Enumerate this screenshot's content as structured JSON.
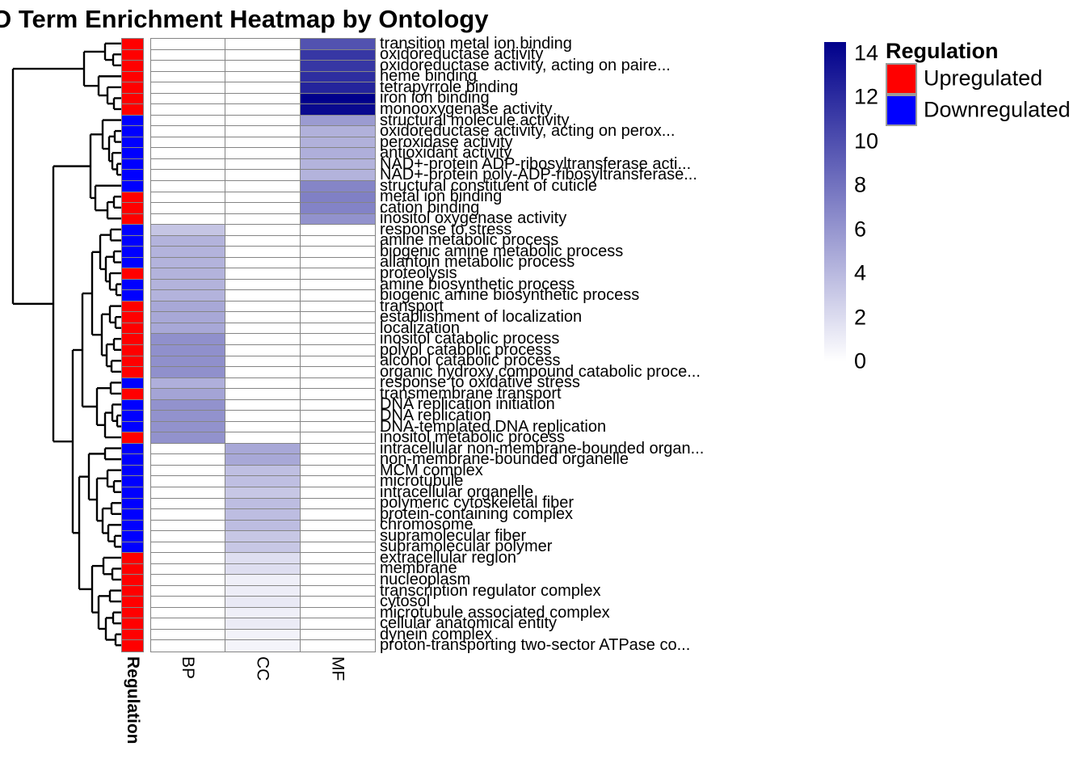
{
  "title": "GO Term Enrichment Heatmap by Ontology",
  "chart_data": {
    "type": "heatmap",
    "columns": [
      "BP",
      "CC",
      "MF"
    ],
    "annotation": {
      "name": "Regulation",
      "colors": {
        "Upregulated": "#FF0000",
        "Downregulated": "#0000FF"
      }
    },
    "value_scale": {
      "min": 0,
      "max": 14,
      "ticks": [
        14,
        12,
        10,
        8,
        6,
        4,
        2,
        0
      ],
      "low_color": "#FFFFFF",
      "high_color": "#00008B"
    },
    "legend": {
      "title": "Regulation",
      "entries": [
        {
          "label": "Upregulated",
          "color": "#FF0000"
        },
        {
          "label": "Downregulated",
          "color": "#0000FF"
        }
      ]
    },
    "rows": [
      {
        "label": "transition metal ion binding",
        "regulation": "Upregulated",
        "values": [
          0,
          0,
          9.5
        ]
      },
      {
        "label": "oxidoreductase activity",
        "regulation": "Upregulated",
        "values": [
          0,
          0,
          11
        ]
      },
      {
        "label": "oxidoreductase activity, acting on paire...",
        "regulation": "Upregulated",
        "values": [
          0,
          0,
          11
        ]
      },
      {
        "label": "heme binding",
        "regulation": "Upregulated",
        "values": [
          0,
          0,
          11.5
        ]
      },
      {
        "label": "tetrapyrrole binding",
        "regulation": "Upregulated",
        "values": [
          0,
          0,
          12
        ]
      },
      {
        "label": "iron ion binding",
        "regulation": "Upregulated",
        "values": [
          0,
          0,
          14
        ]
      },
      {
        "label": "monooxygenase activity",
        "regulation": "Upregulated",
        "values": [
          0,
          0,
          13.5
        ]
      },
      {
        "label": "structural molecule activity",
        "regulation": "Downregulated",
        "values": [
          0,
          0,
          5.5
        ]
      },
      {
        "label": "oxidoreductase activity, acting on perox...",
        "regulation": "Downregulated",
        "values": [
          0,
          0,
          4.3
        ]
      },
      {
        "label": "peroxidase activity",
        "regulation": "Downregulated",
        "values": [
          0,
          0,
          4.3
        ]
      },
      {
        "label": "antioxidant activity",
        "regulation": "Downregulated",
        "values": [
          0,
          0,
          4.4
        ]
      },
      {
        "label": "NAD+-protein ADP-ribosyltransferase acti...",
        "regulation": "Downregulated",
        "values": [
          0,
          0,
          4.2
        ]
      },
      {
        "label": "NAD+-protein poly-ADP-ribosyltransferase...",
        "regulation": "Downregulated",
        "values": [
          0,
          0,
          4.2
        ]
      },
      {
        "label": "structural constituent of cuticle",
        "regulation": "Downregulated",
        "values": [
          0,
          0,
          6.7
        ]
      },
      {
        "label": "metal ion binding",
        "regulation": "Upregulated",
        "values": [
          0,
          0,
          7
        ]
      },
      {
        "label": "cation binding",
        "regulation": "Upregulated",
        "values": [
          0,
          0,
          6.8
        ]
      },
      {
        "label": "inositol oxygenase activity",
        "regulation": "Upregulated",
        "values": [
          0,
          0,
          6
        ]
      },
      {
        "label": "response to stress",
        "regulation": "Downregulated",
        "values": [
          3.2,
          0,
          0
        ]
      },
      {
        "label": "amine metabolic process",
        "regulation": "Downregulated",
        "values": [
          4.2,
          0,
          0
        ]
      },
      {
        "label": "biogenic amine metabolic process",
        "regulation": "Downregulated",
        "values": [
          4.2,
          0,
          0
        ]
      },
      {
        "label": "allantoin metabolic process",
        "regulation": "Downregulated",
        "values": [
          4.2,
          0,
          0
        ]
      },
      {
        "label": "proteolysis",
        "regulation": "Upregulated",
        "values": [
          4.2,
          0,
          0
        ]
      },
      {
        "label": "amine biosynthetic process",
        "regulation": "Downregulated",
        "values": [
          4.2,
          0,
          0
        ]
      },
      {
        "label": "biogenic amine biosynthetic process",
        "regulation": "Downregulated",
        "values": [
          4.2,
          0,
          0
        ]
      },
      {
        "label": "transport",
        "regulation": "Upregulated",
        "values": [
          4.8,
          0,
          0
        ]
      },
      {
        "label": "establishment of localization",
        "regulation": "Upregulated",
        "values": [
          4.8,
          0,
          0
        ]
      },
      {
        "label": "localization",
        "regulation": "Upregulated",
        "values": [
          4.8,
          0,
          0
        ]
      },
      {
        "label": "inositol catabolic process",
        "regulation": "Upregulated",
        "values": [
          6.1,
          0,
          0
        ]
      },
      {
        "label": "polyol catabolic process",
        "regulation": "Upregulated",
        "values": [
          6.1,
          0,
          0
        ]
      },
      {
        "label": "alcohol catabolic process",
        "regulation": "Upregulated",
        "values": [
          6.1,
          0,
          0
        ]
      },
      {
        "label": "organic hydroxy compound catabolic proce...",
        "regulation": "Upregulated",
        "values": [
          6.1,
          0,
          0
        ]
      },
      {
        "label": "response to oxidative stress",
        "regulation": "Downregulated",
        "values": [
          4.4,
          0,
          0
        ]
      },
      {
        "label": "transmembrane transport",
        "regulation": "Upregulated",
        "values": [
          5,
          0,
          0
        ]
      },
      {
        "label": "DNA replication initiation",
        "regulation": "Downregulated",
        "values": [
          6,
          0,
          0
        ]
      },
      {
        "label": "DNA replication",
        "regulation": "Downregulated",
        "values": [
          6,
          0,
          0
        ]
      },
      {
        "label": "DNA-templated DNA replication",
        "regulation": "Downregulated",
        "values": [
          6,
          0,
          0
        ]
      },
      {
        "label": "inositol metabolic process",
        "regulation": "Upregulated",
        "values": [
          6,
          0,
          0
        ]
      },
      {
        "label": "intracellular non-membrane-bounded organ...",
        "regulation": "Downregulated",
        "values": [
          0,
          4.8,
          0
        ]
      },
      {
        "label": "non-membrane-bounded organelle",
        "regulation": "Downregulated",
        "values": [
          0,
          4.8,
          0
        ]
      },
      {
        "label": "MCM complex",
        "regulation": "Downregulated",
        "values": [
          0,
          3.5,
          0
        ]
      },
      {
        "label": "microtubule",
        "regulation": "Downregulated",
        "values": [
          0,
          3.5,
          0
        ]
      },
      {
        "label": "intracellular organelle",
        "regulation": "Downregulated",
        "values": [
          0,
          3.1,
          0
        ]
      },
      {
        "label": "polymeric cytoskeletal fiber",
        "regulation": "Downregulated",
        "values": [
          0,
          3.6,
          0
        ]
      },
      {
        "label": "protein-containing complex",
        "regulation": "Downregulated",
        "values": [
          0,
          3.6,
          0
        ]
      },
      {
        "label": "chromosome",
        "regulation": "Downregulated",
        "values": [
          0,
          3.6,
          0
        ]
      },
      {
        "label": "supramolecular fiber",
        "regulation": "Downregulated",
        "values": [
          0,
          3.1,
          0
        ]
      },
      {
        "label": "supramolecular polymer",
        "regulation": "Downregulated",
        "values": [
          0,
          3.1,
          0
        ]
      },
      {
        "label": "extracellular region",
        "regulation": "Upregulated",
        "values": [
          0,
          1.8,
          0
        ]
      },
      {
        "label": "membrane",
        "regulation": "Upregulated",
        "values": [
          0,
          1.8,
          0
        ]
      },
      {
        "label": "nucleoplasm",
        "regulation": "Upregulated",
        "values": [
          0,
          0.9,
          0
        ]
      },
      {
        "label": "transcription regulator complex",
        "regulation": "Upregulated",
        "values": [
          0,
          1.0,
          0
        ]
      },
      {
        "label": "cytosol",
        "regulation": "Upregulated",
        "values": [
          0,
          1.2,
          0
        ]
      },
      {
        "label": "microtubule associated complex",
        "regulation": "Upregulated",
        "values": [
          0,
          0.9,
          0
        ]
      },
      {
        "label": "cellular anatomical entity",
        "regulation": "Upregulated",
        "values": [
          0,
          1.1,
          0
        ]
      },
      {
        "label": "dynein complex",
        "regulation": "Upregulated",
        "values": [
          0,
          0.7,
          0
        ]
      },
      {
        "label": "proton-transporting two-sector ATPase co...",
        "regulation": "Upregulated",
        "values": [
          0,
          0.6,
          0
        ]
      }
    ],
    "dendrogram": [
      16,
      [
        104,
        [
          130,
          1,
          [
            140,
            2,
            3
          ]
        ],
        [
          122,
          4,
          [
            133,
            5,
            [
              141,
              6,
              7
            ]
          ]
        ]
      ],
      [
        66,
        [
          112,
          [
            127,
            8,
            [
              135,
              [
                142,
                9,
                10
              ],
              [
                139,
                11,
                [
                  145,
                  12,
                  13
                ]
              ]
            ]
          ],
          [
            118,
            14,
            [
              133,
              [
                141,
                15,
                16
              ],
              17
            ]
          ]
        ],
        [
          90,
          [
            102,
            [
              114,
              [
                124,
                [
                  137,
                  18,
                  19
                ],
                [
                  131,
                  [
                    141,
                    20,
                    21
                  ],
                  [
                    136,
                    22,
                    [
                      144,
                      23,
                      24
                    ]
                  ]
                ]
              ],
              [
                126,
                [
                  136,
                  25,
                  [
                    143,
                    26,
                    27
                  ]
                ],
                [
                  132,
                  [
                    141,
                    28,
                    29
                  ],
                  [
                    138,
                    30,
                    31
                  ]
                ]
              ]
            ],
            [
              120,
              [
                137,
                32,
                33
              ],
              [
                130,
                [
                  139,
                  34,
                  [
                    145,
                    35,
                    36
                  ]
                ],
                37
              ]
            ]
          ],
          [
            98,
            [
              110,
              [
                130,
                38,
                39
              ],
              [
                120,
                [
                  133,
                  40,
                  [
                    141,
                    41,
                    42
                  ]
                ],
                [
                  127,
                  [
                    138,
                    43,
                    44
                  ],
                  [
                    134,
                    45,
                    [
                      142,
                      46,
                      47
                    ]
                  ]
                ]
              ]
            ],
            [
              114,
              [
                128,
                48,
                [
                  139,
                  49,
                  50
                ]
              ],
              [
                122,
                [
                  136,
                  51,
                  52
                ],
                [
                  131,
                  [
                    140,
                    53,
                    54
                  ],
                  [
                    143,
                    55,
                    56
                  ]
                ]
              ]
            ]
          ]
        ]
      ]
    ]
  }
}
